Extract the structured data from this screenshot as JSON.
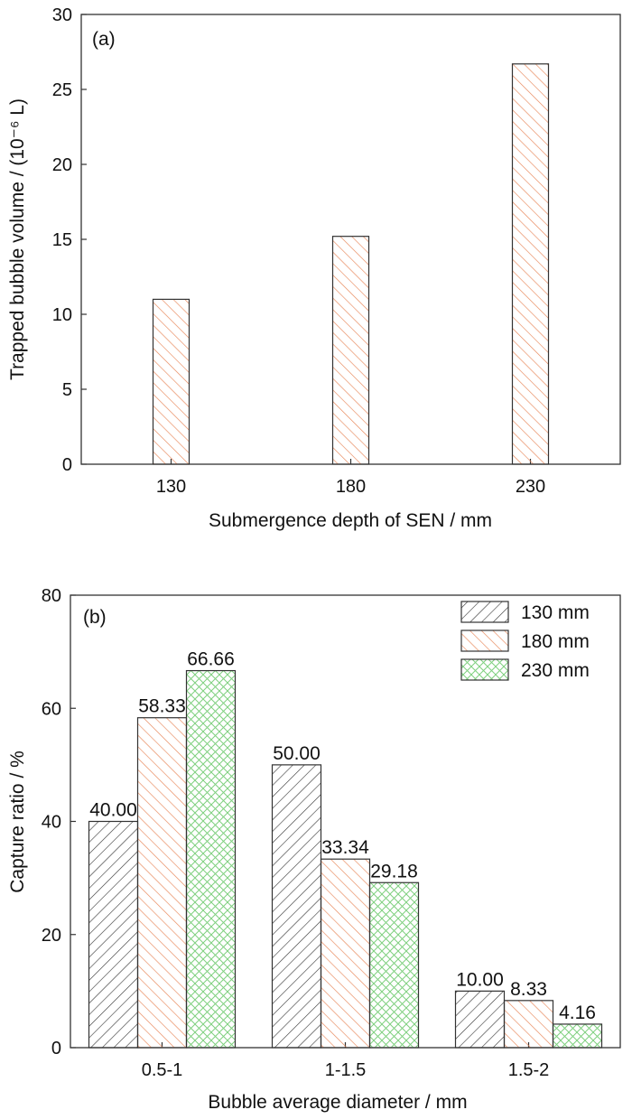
{
  "colors": {
    "series_130": "#333333",
    "series_180": "#e8875a",
    "series_230": "#7fd07f",
    "axis": "#333333"
  },
  "chart_data": [
    {
      "type": "bar",
      "panel_label": "(a)",
      "title": "",
      "categories": [
        "130",
        "180",
        "230"
      ],
      "values": [
        11.0,
        15.2,
        26.7
      ],
      "xlabel": "Submergence depth of SEN / mm",
      "ylabel": "Trapped bubble volume / (10⁻⁶ L)",
      "ylim": [
        0,
        30
      ],
      "yticks": [
        "0",
        "5",
        "10",
        "15",
        "20",
        "25",
        "30"
      ],
      "series_colors": [
        "#e8875a"
      ],
      "grid": false
    },
    {
      "type": "bar",
      "panel_label": "(b)",
      "title": "",
      "categories": [
        "0.5-1",
        "1-1.5",
        "1.5-2"
      ],
      "series": [
        {
          "name": "130 mm",
          "values": [
            40.0,
            50.0,
            10.0
          ],
          "labels": [
            "40.00",
            "50.00",
            "10.00"
          ]
        },
        {
          "name": "180 mm",
          "values": [
            58.33,
            33.34,
            8.33
          ],
          "labels": [
            "58.33",
            "33.34",
            "8.33"
          ]
        },
        {
          "name": "230 mm",
          "values": [
            66.66,
            29.18,
            4.16
          ],
          "labels": [
            "66.66",
            "29.18",
            "4.16"
          ]
        }
      ],
      "xlabel": "Bubble average diameter / mm",
      "ylabel": "Capture ratio / %",
      "ylim": [
        0,
        80
      ],
      "yticks": [
        "0",
        "20",
        "40",
        "60",
        "80"
      ],
      "legend_position": "top-right",
      "grid": false
    }
  ]
}
